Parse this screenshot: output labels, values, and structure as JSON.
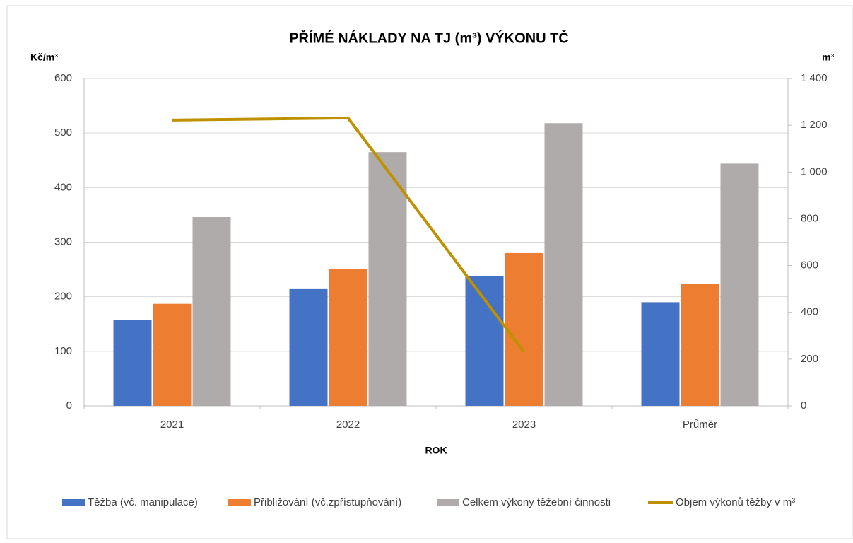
{
  "chart_data": {
    "type": "bar",
    "title": "PŘÍMÉ NÁKLADY NA TJ  (m³) VÝKONU TČ",
    "y_label": "Kč/m³",
    "y2_label": "m³",
    "x_label": "ROK",
    "categories": [
      "2021",
      "2022",
      "2023",
      "Průměr"
    ],
    "series": [
      {
        "name": "Těžba (vč. manipulace)",
        "color": "#4472c4",
        "type": "bar",
        "values": [
          158,
          214,
          238,
          190
        ]
      },
      {
        "name": "Přibližování (vč.zpřístupňování)",
        "color": "#ed7d31",
        "type": "bar",
        "values": [
          187,
          251,
          280,
          224
        ]
      },
      {
        "name": "Celkem výkony těžební činnosti",
        "color": "#afabab",
        "type": "bar",
        "values": [
          346,
          465,
          518,
          444
        ]
      },
      {
        "name": "Objem výkonů těžby v m³",
        "color": "#bf9000",
        "type": "line",
        "axis": "y2",
        "values": [
          1222,
          1231,
          230,
          null
        ]
      }
    ],
    "ylim": [
      0,
      600
    ],
    "yticks": [
      0,
      100,
      200,
      300,
      400,
      500,
      600
    ],
    "y2lim": [
      0,
      1400
    ],
    "y2ticks": [
      0,
      200,
      400,
      600,
      800,
      {
        "value": 1000,
        "label": "1 000"
      },
      {
        "value": 1200,
        "label": "1 200"
      },
      {
        "value": 1400,
        "label": "1 400"
      }
    ],
    "grid": true,
    "legend": "bottom"
  }
}
